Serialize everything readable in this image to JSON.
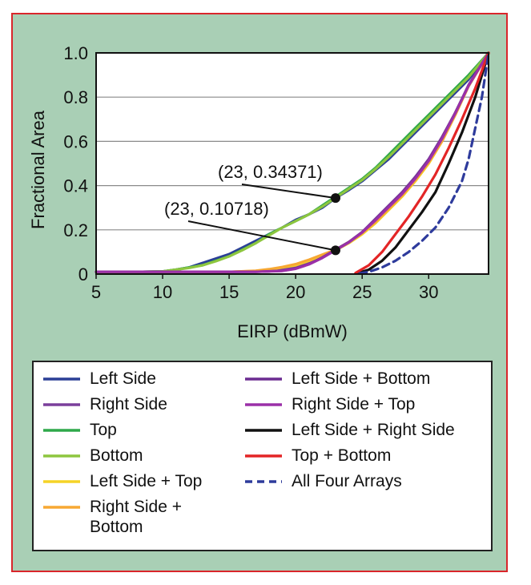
{
  "chart_data": {
    "type": "line",
    "title": "",
    "xlabel": "EIRP (dBmW)",
    "ylabel": "Fractional Area",
    "xlim": [
      5,
      34.5
    ],
    "ylim": [
      0,
      1.0
    ],
    "xticks": [
      5,
      10,
      15,
      20,
      25,
      30
    ],
    "yticks": [
      0,
      0.2,
      0.4,
      0.6,
      0.8,
      1.0
    ],
    "ytick_labels": [
      "0",
      "0.2",
      "0.4",
      "0.6",
      "0.8",
      "1.0"
    ],
    "grid": "horizontal",
    "legend_position": "bottom",
    "series": [
      {
        "name": "Left Side",
        "color": "#2b3f96",
        "dash": "solid",
        "x": [
          5,
          8,
          10,
          11,
          12,
          13,
          14,
          15,
          16,
          17,
          18,
          19,
          20,
          21,
          22,
          23,
          24,
          25,
          26,
          27,
          28,
          29,
          30,
          31,
          32,
          33,
          34.5
        ],
        "y": [
          0.01,
          0.01,
          0.012,
          0.02,
          0.03,
          0.05,
          0.07,
          0.09,
          0.12,
          0.15,
          0.18,
          0.21,
          0.245,
          0.27,
          0.3,
          0.34371,
          0.38,
          0.42,
          0.47,
          0.52,
          0.58,
          0.64,
          0.7,
          0.76,
          0.82,
          0.88,
          1.0
        ]
      },
      {
        "name": "Right Side",
        "color": "#7b3f9c",
        "dash": "solid",
        "x": [
          5,
          15,
          18,
          19,
          20,
          21,
          22,
          23,
          24,
          25,
          26,
          27,
          28,
          29,
          30,
          31,
          32,
          33,
          34.5
        ],
        "y": [
          0.01,
          0.01,
          0.012,
          0.02,
          0.03,
          0.05,
          0.08,
          0.11,
          0.145,
          0.19,
          0.25,
          0.31,
          0.37,
          0.44,
          0.52,
          0.62,
          0.73,
          0.85,
          1.0
        ]
      },
      {
        "name": "Top",
        "color": "#2fa84a",
        "dash": "solid",
        "x": [
          5,
          8,
          10,
          11,
          12,
          13,
          14,
          15,
          16,
          17,
          18,
          19,
          20,
          21,
          22,
          23,
          24,
          25,
          26,
          27,
          28,
          29,
          30,
          31,
          32,
          33,
          34.5
        ],
        "y": [
          0.01,
          0.01,
          0.012,
          0.02,
          0.03,
          0.04,
          0.06,
          0.08,
          0.11,
          0.14,
          0.18,
          0.21,
          0.24,
          0.27,
          0.31,
          0.35,
          0.39,
          0.43,
          0.48,
          0.54,
          0.6,
          0.66,
          0.72,
          0.78,
          0.84,
          0.9,
          1.0
        ]
      },
      {
        "name": "Bottom",
        "color": "#8dc63f",
        "dash": "solid",
        "x": [
          5,
          8,
          10,
          11,
          12,
          13,
          14,
          15,
          16,
          17,
          18,
          19,
          20,
          21,
          22,
          23,
          24,
          25,
          26,
          27,
          28,
          29,
          30,
          31,
          32,
          33,
          34.5
        ],
        "y": [
          0.01,
          0.01,
          0.012,
          0.02,
          0.028,
          0.04,
          0.058,
          0.08,
          0.108,
          0.14,
          0.175,
          0.21,
          0.24,
          0.27,
          0.305,
          0.345,
          0.385,
          0.425,
          0.475,
          0.53,
          0.59,
          0.65,
          0.71,
          0.77,
          0.83,
          0.89,
          1.0
        ]
      },
      {
        "name": "Left Side + Top",
        "color": "#f5d327",
        "dash": "solid",
        "x": [
          5,
          15,
          17,
          18,
          19,
          20,
          21,
          22,
          23,
          24,
          25,
          26,
          27,
          28,
          29,
          30,
          31,
          32,
          33,
          34.5
        ],
        "y": [
          0.01,
          0.01,
          0.014,
          0.02,
          0.03,
          0.04,
          0.06,
          0.085,
          0.10718,
          0.14,
          0.18,
          0.23,
          0.29,
          0.35,
          0.42,
          0.5,
          0.6,
          0.72,
          0.85,
          1.0
        ]
      },
      {
        "name": "Right Side + Bottom",
        "color": "#f7a833",
        "dash": "solid",
        "x": [
          5,
          15,
          17,
          18,
          19,
          20,
          21,
          22,
          23,
          24,
          25,
          26,
          27,
          28,
          29,
          30,
          31,
          32,
          33,
          34.5
        ],
        "y": [
          0.01,
          0.01,
          0.015,
          0.022,
          0.032,
          0.045,
          0.065,
          0.088,
          0.11,
          0.145,
          0.185,
          0.235,
          0.295,
          0.355,
          0.425,
          0.505,
          0.6,
          0.72,
          0.85,
          1.0
        ]
      },
      {
        "name": "Left Side + Bottom",
        "color": "#6b2c91",
        "dash": "solid",
        "x": [
          5,
          17,
          19,
          20,
          21,
          22,
          23,
          24,
          25,
          26,
          27,
          28,
          29,
          30,
          31,
          32,
          33,
          34.5
        ],
        "y": [
          0.01,
          0.01,
          0.015,
          0.025,
          0.045,
          0.075,
          0.11,
          0.145,
          0.19,
          0.245,
          0.305,
          0.365,
          0.435,
          0.515,
          0.615,
          0.73,
          0.855,
          1.0
        ]
      },
      {
        "name": "Right Side + Top",
        "color": "#9b30a8",
        "dash": "solid",
        "x": [
          5,
          17,
          19,
          20,
          21,
          22,
          23,
          24,
          25,
          26,
          27,
          28,
          29,
          30,
          31,
          32,
          33,
          34.5
        ],
        "y": [
          0.01,
          0.01,
          0.014,
          0.024,
          0.044,
          0.073,
          0.108,
          0.143,
          0.188,
          0.243,
          0.303,
          0.362,
          0.432,
          0.512,
          0.612,
          0.727,
          0.852,
          1.0
        ]
      },
      {
        "name": "Left Side + Right Side",
        "color": "#111111",
        "dash": "solid",
        "x": [
          24.7,
          25.5,
          26.5,
          27.5,
          28.5,
          29.5,
          30.5,
          31.5,
          32.5,
          33.5,
          34.5
        ],
        "y": [
          0.005,
          0.02,
          0.06,
          0.12,
          0.2,
          0.28,
          0.37,
          0.5,
          0.64,
          0.8,
          1.0
        ]
      },
      {
        "name": "Top + Bottom",
        "color": "#e32526",
        "dash": "solid",
        "x": [
          24.5,
          25.5,
          26.5,
          27.5,
          28.5,
          29.5,
          30.5,
          31.5,
          32.5,
          33.5,
          34.5
        ],
        "y": [
          0.005,
          0.04,
          0.1,
          0.18,
          0.26,
          0.35,
          0.45,
          0.57,
          0.7,
          0.84,
          1.0
        ]
      },
      {
        "name": "All Four Arrays",
        "color": "#2e3b9c",
        "dash": "dashed",
        "x": [
          24.8,
          25.5,
          26.5,
          27.5,
          28.5,
          29.5,
          30.5,
          31.5,
          32.5,
          33.0,
          33.5,
          34.0,
          34.5
        ],
        "y": [
          0.003,
          0.01,
          0.03,
          0.06,
          0.1,
          0.15,
          0.21,
          0.3,
          0.42,
          0.52,
          0.66,
          0.8,
          1.0
        ]
      }
    ],
    "annotations": [
      {
        "text": "(23, 0.34371)",
        "x": 23,
        "y": 0.34371
      },
      {
        "text": "(23, 0.10718)",
        "x": 23,
        "y": 0.10718
      }
    ],
    "legend_wrap": {
      "Right Side + Bottom": [
        "Right Side +",
        "Bottom"
      ]
    }
  }
}
